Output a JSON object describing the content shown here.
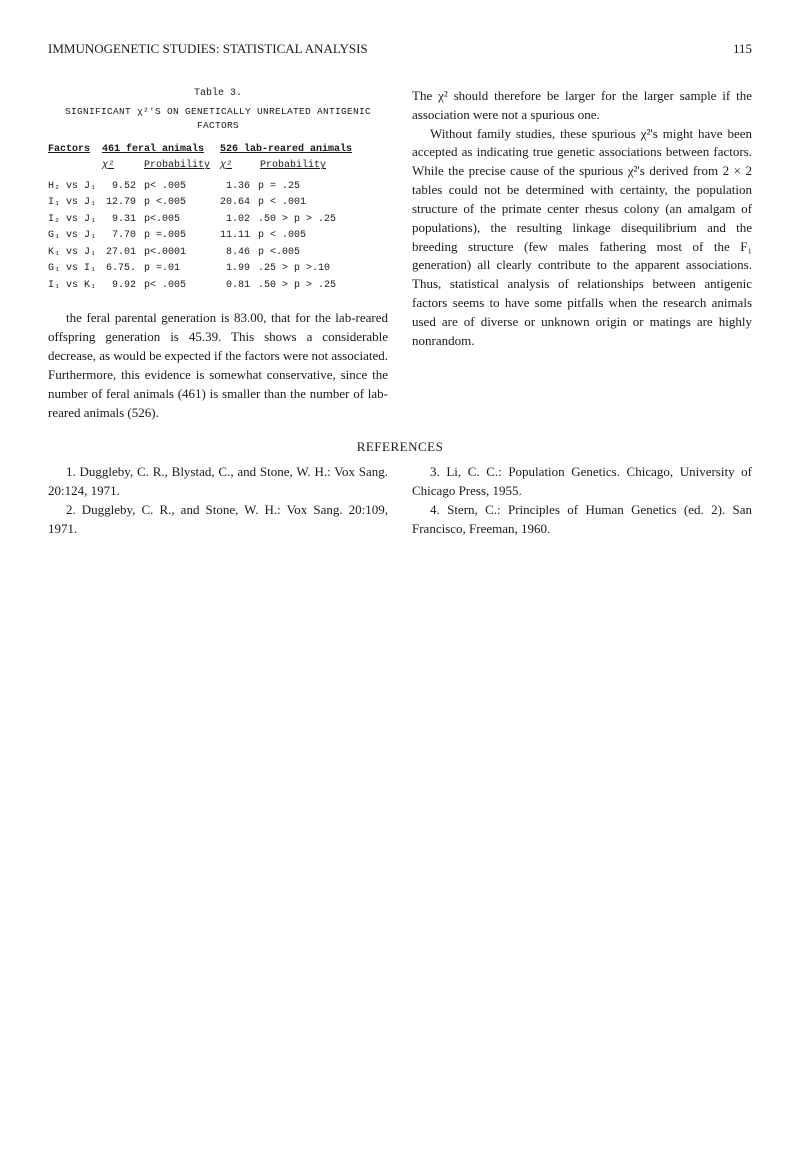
{
  "header": {
    "title": "IMMUNOGENETIC STUDIES: STATISTICAL ANALYSIS",
    "page": "115"
  },
  "table": {
    "title": "Table 3.",
    "subtitle": "SIGNIFICANT χ²'S ON GENETICALLY UNRELATED ANTIGENIC FACTORS",
    "hdr_factors": "Factors",
    "hdr_feral": "461 feral animals",
    "hdr_lab": "526 lab-reared animals",
    "sub_chi1": "χ²",
    "sub_prob1": "Probability",
    "sub_chi2": "χ²",
    "sub_prob2": "Probability",
    "rows": [
      {
        "f": "H₂ vs J₁",
        "c1": "9.52",
        "p1": "p< .005",
        "c2": "1.36",
        "p2": "p = .25"
      },
      {
        "f": "I₁ vs J₁",
        "c1": "12.79",
        "p1": "p <.005",
        "c2": "20.64",
        "p2": "p < .001"
      },
      {
        "f": "I₂ vs J₁",
        "c1": "9.31",
        "p1": "p<.005",
        "c2": "1.02",
        "p2": ".50 > p > .25"
      },
      {
        "f": "G₁ vs J₁",
        "c1": "7.70",
        "p1": "p =.005",
        "c2": "11.11",
        "p2": "p < .005"
      },
      {
        "f": "K₁ vs J₁",
        "c1": "27.01",
        "p1": "p<.0001",
        "c2": "8.46",
        "p2": "p <.005"
      },
      {
        "f": "G₁ vs I₁",
        "c1": "6.75.",
        "p1": "p =.01",
        "c2": "1.99",
        "p2": ".25 > p >.10"
      },
      {
        "f": "I₁ vs K₁",
        "c1": "9.92",
        "p1": "p< .005",
        "c2": "0.81",
        "p2": ".50 > p > .25"
      }
    ]
  },
  "left_para": "the feral parental generation is 83.00, that for the lab-reared offspring generation is 45.39. This shows a considerable decrease, as would be expected if the factors were not associated. Furthermore, this evidence is somewhat conservative, since the number of feral animals (461) is smaller than the number of lab-reared animals (526).",
  "right_para1": "The χ² should therefore be larger for the larger sample if the association were not a spurious one.",
  "right_para2": "Without family studies, these spurious χ²'s might have been accepted as indicating true genetic associations between factors. While the precise cause of the spurious χ²'s derived from 2 × 2 tables could not be determined with certainty, the population structure of the primate center rhesus colony (an amalgam of populations), the resulting linkage disequilibrium and the breeding structure (few males fathering most of the F₁ generation) all clearly contribute to the apparent associations. Thus, statistical analysis of relationships between antigenic factors seems to have some pitfalls when the research animals used are of diverse or unknown origin or matings are highly nonrandom.",
  "references": {
    "title": "REFERENCES",
    "left": [
      "1. Duggleby, C. R., Blystad, C., and Stone, W. H.: Vox Sang. 20:124, 1971.",
      "2. Duggleby, C. R., and Stone, W. H.: Vox Sang. 20:109, 1971."
    ],
    "right": [
      "3. Li, C. C.: Population Genetics. Chicago, University of Chicago Press, 1955.",
      "4. Stern, C.: Principles of Human Genetics (ed. 2). San Francisco, Freeman, 1960."
    ]
  }
}
